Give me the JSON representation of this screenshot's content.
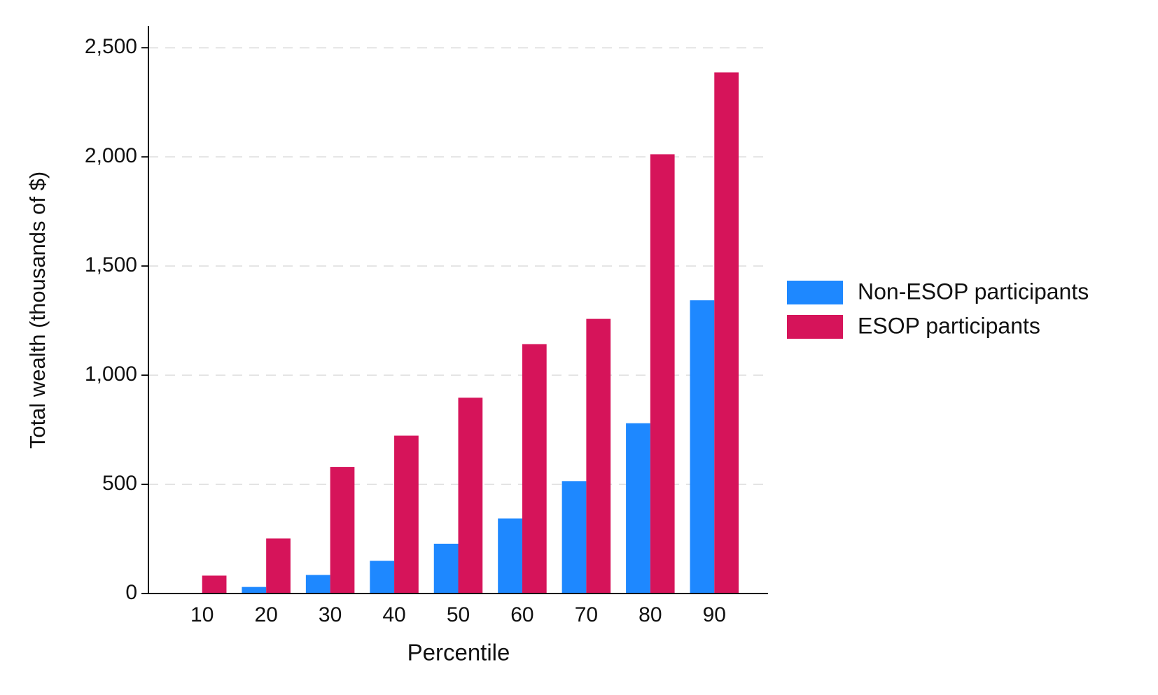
{
  "chart_data": {
    "type": "bar",
    "x_label": "Percentile",
    "y_label": "Total wealth (thousands of $)",
    "categories": [
      "10",
      "20",
      "30",
      "40",
      "50",
      "60",
      "70",
      "80",
      "90"
    ],
    "series": [
      {
        "name": "Non-ESOP participants",
        "color": "#1e88ff",
        "values": [
          3,
          30,
          85,
          150,
          228,
          344,
          515,
          780,
          1343
        ]
      },
      {
        "name": "ESOP participants",
        "color": "#d6145a",
        "values": [
          82,
          252,
          580,
          723,
          897,
          1142,
          1258,
          2012,
          2387
        ]
      }
    ],
    "ylim": [
      0,
      2600
    ],
    "yticks": [
      0,
      500,
      {
        "value": 1000,
        "label": "1,000"
      },
      {
        "value": 1500,
        "label": "1,500"
      },
      {
        "value": 2000,
        "label": "2,000"
      },
      {
        "value": 2500,
        "label": "2,500"
      }
    ],
    "grid": true,
    "legend": "right"
  }
}
